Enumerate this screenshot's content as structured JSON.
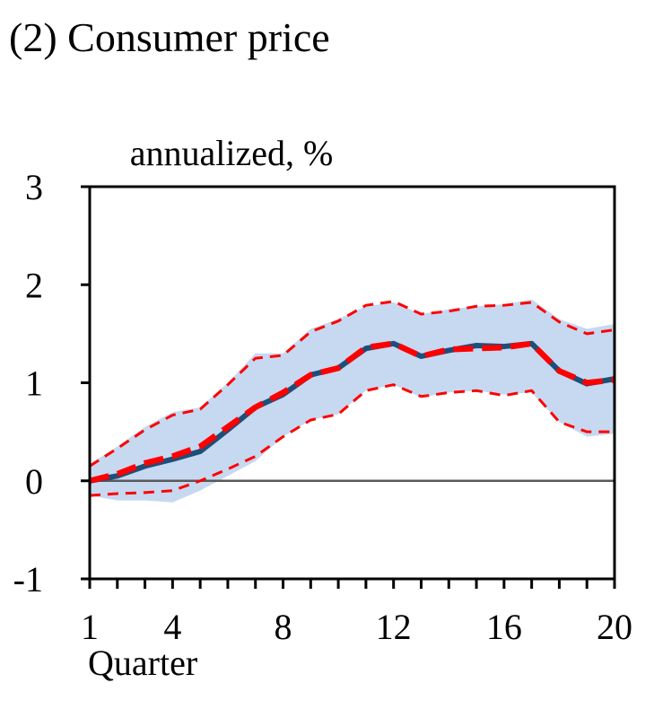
{
  "chart_data": {
    "type": "line",
    "title": "(2) Consumer price",
    "unit_label": "annualized, %",
    "xlabel": "Quarter",
    "x": [
      1,
      2,
      3,
      4,
      5,
      6,
      7,
      8,
      9,
      10,
      11,
      12,
      13,
      14,
      15,
      16,
      17,
      18,
      19,
      20
    ],
    "x_tick_labels": [
      "1",
      "4",
      "8",
      "12",
      "16",
      "20"
    ],
    "x_tick_values": [
      1,
      4,
      8,
      12,
      16,
      20
    ],
    "y_tick_labels": [
      "3",
      "2",
      "1",
      "0",
      "-1"
    ],
    "y_tick_values": [
      3,
      2,
      1,
      0,
      -1
    ],
    "xlim": [
      1,
      20
    ],
    "ylim": [
      -1,
      3
    ],
    "grid": false,
    "legend": "none",
    "series": [
      {
        "role": "band",
        "lower": [
          -0.15,
          -0.2,
          -0.2,
          -0.22,
          -0.1,
          0.05,
          0.2,
          0.45,
          0.62,
          0.68,
          0.92,
          0.98,
          0.85,
          0.9,
          0.92,
          0.88,
          0.9,
          0.6,
          0.45,
          0.48
        ],
        "upper": [
          0.17,
          0.35,
          0.55,
          0.7,
          0.75,
          1.0,
          1.3,
          1.3,
          1.55,
          1.65,
          1.78,
          1.82,
          1.7,
          1.75,
          1.78,
          1.8,
          1.85,
          1.65,
          1.55,
          1.6
        ],
        "color": "#c6d9f1"
      },
      {
        "role": "upper-bound",
        "values": [
          0.15,
          0.33,
          0.52,
          0.67,
          0.73,
          0.98,
          1.25,
          1.28,
          1.52,
          1.63,
          1.79,
          1.83,
          1.7,
          1.73,
          1.78,
          1.79,
          1.82,
          1.62,
          1.5,
          1.54
        ],
        "color": "#ff0000",
        "style": "dashed-thin"
      },
      {
        "role": "lower-bound",
        "values": [
          -0.15,
          -0.13,
          -0.12,
          -0.1,
          0.0,
          0.12,
          0.25,
          0.45,
          0.62,
          0.68,
          0.92,
          0.98,
          0.86,
          0.9,
          0.92,
          0.87,
          0.92,
          0.6,
          0.5,
          0.5
        ],
        "color": "#ff0000",
        "style": "dashed-thin"
      },
      {
        "role": "point-estimate",
        "values": [
          0.0,
          0.05,
          0.15,
          0.22,
          0.3,
          0.52,
          0.75,
          0.88,
          1.08,
          1.15,
          1.35,
          1.4,
          1.27,
          1.33,
          1.38,
          1.37,
          1.4,
          1.12,
          0.99,
          1.04
        ],
        "color": "#1f4e79",
        "style": "solid"
      },
      {
        "role": "alternative-estimate",
        "values": [
          0.0,
          0.07,
          0.18,
          0.25,
          0.35,
          0.55,
          0.75,
          0.9,
          1.08,
          1.15,
          1.36,
          1.4,
          1.27,
          1.34,
          1.35,
          1.36,
          1.4,
          1.12,
          1.0,
          1.03
        ],
        "color": "#ff0000",
        "style": "dashed-thick"
      }
    ],
    "zero_line_color": "#595959"
  }
}
